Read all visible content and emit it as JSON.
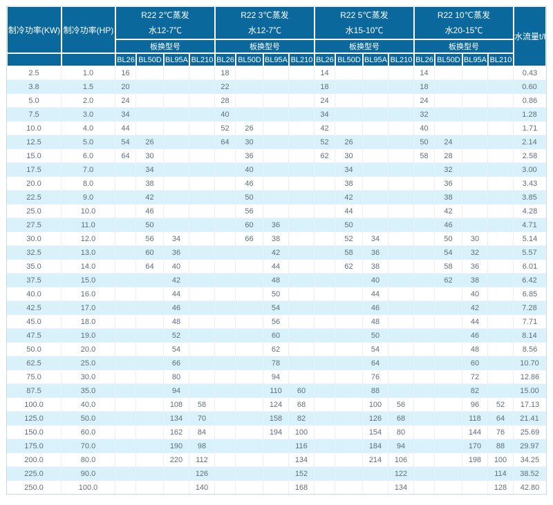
{
  "colors": {
    "header_bg": "#0a689d",
    "row_alt_bg": "#d9f1fb",
    "body_text": "#5f6e79",
    "header_text": "#ffffff",
    "outer_border": "#c2dcec"
  },
  "table": {
    "headers": {
      "kw": "制冷功率(KW)",
      "hp": "制冷功率(HP)",
      "flow": "水流量t/h",
      "plate_model_label": "板换型号",
      "models": [
        "BL26",
        "BL50D",
        "BL95A",
        "BL210"
      ],
      "groups": [
        {
          "line1": "R22 2℃蒸发",
          "line2": "水12-7℃"
        },
        {
          "line1": "R22 3℃蒸发",
          "line2": "水12-7℃"
        },
        {
          "line1": "R22 5℃蒸发",
          "line2": "水15-10℃"
        },
        {
          "line1": "R22 10℃蒸发",
          "line2": "水20-15℃"
        }
      ]
    },
    "rows": [
      {
        "kw": "2.5",
        "hp": "1.0",
        "cells": [
          "16",
          "",
          "",
          "",
          "18",
          "",
          "",
          "",
          "14",
          "",
          "",
          "",
          "14",
          "",
          "",
          ""
        ],
        "flow": "0.43"
      },
      {
        "kw": "3.8",
        "hp": "1.5",
        "cells": [
          "20",
          "",
          "",
          "",
          "22",
          "",
          "",
          "",
          "18",
          "",
          "",
          "",
          "18",
          "",
          "",
          ""
        ],
        "flow": "0.60"
      },
      {
        "kw": "5.0",
        "hp": "2.0",
        "cells": [
          "24",
          "",
          "",
          "",
          "28",
          "",
          "",
          "",
          "24",
          "",
          "",
          "",
          "24",
          "",
          "",
          ""
        ],
        "flow": "0.86"
      },
      {
        "kw": "7.5",
        "hp": "3.0",
        "cells": [
          "34",
          "",
          "",
          "",
          "40",
          "",
          "",
          "",
          "34",
          "",
          "",
          "",
          "32",
          "",
          "",
          ""
        ],
        "flow": "1.28"
      },
      {
        "kw": "10.0",
        "hp": "4.0",
        "cells": [
          "44",
          "",
          "",
          "",
          "52",
          "26",
          "",
          "",
          "42",
          "",
          "",
          "",
          "40",
          "",
          "",
          ""
        ],
        "flow": "1.71"
      },
      {
        "kw": "12.5",
        "hp": "5.0",
        "cells": [
          "54",
          "26",
          "",
          "",
          "64",
          "30",
          "",
          "",
          "52",
          "26",
          "",
          "",
          "50",
          "24",
          "",
          ""
        ],
        "flow": "2.14"
      },
      {
        "kw": "15.0",
        "hp": "6.0",
        "cells": [
          "64",
          "30",
          "",
          "",
          "",
          "36",
          "",
          "",
          "62",
          "30",
          "",
          "",
          "58",
          "28",
          "",
          ""
        ],
        "flow": "2.58"
      },
      {
        "kw": "17.5",
        "hp": "7.0",
        "cells": [
          "",
          "34",
          "",
          "",
          "",
          "40",
          "",
          "",
          "",
          "34",
          "",
          "",
          "",
          "32",
          "",
          ""
        ],
        "flow": "3.00"
      },
      {
        "kw": "20.0",
        "hp": "8.0",
        "cells": [
          "",
          "38",
          "",
          "",
          "",
          "46",
          "",
          "",
          "",
          "38",
          "",
          "",
          "",
          "36",
          "",
          ""
        ],
        "flow": "3.43"
      },
      {
        "kw": "22.5",
        "hp": "9.0",
        "cells": [
          "",
          "42",
          "",
          "",
          "",
          "50",
          "",
          "",
          "",
          "42",
          "",
          "",
          "",
          "38",
          "",
          ""
        ],
        "flow": "3.85"
      },
      {
        "kw": "25.0",
        "hp": "10.0",
        "cells": [
          "",
          "46",
          "",
          "",
          "",
          "56",
          "",
          "",
          "",
          "44",
          "",
          "",
          "",
          "42",
          "",
          ""
        ],
        "flow": "4.28"
      },
      {
        "kw": "27.5",
        "hp": "11.0",
        "cells": [
          "",
          "50",
          "",
          "",
          "",
          "60",
          "36",
          "",
          "",
          "50",
          "",
          "",
          "",
          "46",
          "",
          ""
        ],
        "flow": "4.71"
      },
      {
        "kw": "30.0",
        "hp": "12.0",
        "cells": [
          "",
          "56",
          "34",
          "",
          "",
          "66",
          "38",
          "",
          "",
          "52",
          "34",
          "",
          "",
          "50",
          "30",
          ""
        ],
        "flow": "5.14"
      },
      {
        "kw": "32.5",
        "hp": "13.0",
        "cells": [
          "",
          "60",
          "36",
          "",
          "",
          "",
          "42",
          "",
          "",
          "58",
          "36",
          "",
          "",
          "54",
          "32",
          ""
        ],
        "flow": "5.57"
      },
      {
        "kw": "35.0",
        "hp": "14.0",
        "cells": [
          "",
          "64",
          "40",
          "",
          "",
          "",
          "44",
          "",
          "",
          "62",
          "38",
          "",
          "",
          "58",
          "36",
          ""
        ],
        "flow": "6.01"
      },
      {
        "kw": "37.5",
        "hp": "15.0",
        "cells": [
          "",
          "",
          "42",
          "",
          "",
          "",
          "48",
          "",
          "",
          "",
          "40",
          "",
          "",
          "62",
          "38",
          ""
        ],
        "flow": "6.42"
      },
      {
        "kw": "40.0",
        "hp": "16.0",
        "cells": [
          "",
          "",
          "44",
          "",
          "",
          "",
          "50",
          "",
          "",
          "",
          "44",
          "",
          "",
          "",
          "40",
          ""
        ],
        "flow": "6.85"
      },
      {
        "kw": "42.5",
        "hp": "17.0",
        "cells": [
          "",
          "",
          "46",
          "",
          "",
          "",
          "54",
          "",
          "",
          "",
          "46",
          "",
          "",
          "",
          "42",
          ""
        ],
        "flow": "7.28"
      },
      {
        "kw": "45.0",
        "hp": "18.0",
        "cells": [
          "",
          "",
          "48",
          "",
          "",
          "",
          "56",
          "",
          "",
          "",
          "48",
          "",
          "",
          "",
          "44",
          ""
        ],
        "flow": "7.71"
      },
      {
        "kw": "47.5",
        "hp": "19.0",
        "cells": [
          "",
          "",
          "52",
          "",
          "",
          "",
          "60",
          "",
          "",
          "",
          "50",
          "",
          "",
          "",
          "46",
          ""
        ],
        "flow": "8.14"
      },
      {
        "kw": "50.0",
        "hp": "20.0",
        "cells": [
          "",
          "",
          "54",
          "",
          "",
          "",
          "62",
          "",
          "",
          "",
          "54",
          "",
          "",
          "",
          "48",
          ""
        ],
        "flow": "8.56"
      },
      {
        "kw": "62.5",
        "hp": "25.0",
        "cells": [
          "",
          "",
          "66",
          "",
          "",
          "",
          "78",
          "",
          "",
          "",
          "64",
          "",
          "",
          "",
          "60",
          ""
        ],
        "flow": "10.70"
      },
      {
        "kw": "75.0",
        "hp": "30.0",
        "cells": [
          "",
          "",
          "80",
          "",
          "",
          "",
          "94",
          "",
          "",
          "",
          "76",
          "",
          "",
          "",
          "72",
          ""
        ],
        "flow": "12.86"
      },
      {
        "kw": "87.5",
        "hp": "35.0",
        "cells": [
          "",
          "",
          "94",
          "",
          "",
          "",
          "110",
          "60",
          "",
          "",
          "88",
          "",
          "",
          "",
          "82",
          ""
        ],
        "flow": "15.00"
      },
      {
        "kw": "100.0",
        "hp": "40.0",
        "cells": [
          "",
          "",
          "108",
          "58",
          "",
          "",
          "124",
          "68",
          "",
          "",
          "100",
          "56",
          "",
          "",
          "96",
          "52"
        ],
        "flow": "17.13"
      },
      {
        "kw": "125.0",
        "hp": "50.0",
        "cells": [
          "",
          "",
          "134",
          "70",
          "",
          "",
          "158",
          "82",
          "",
          "",
          "126",
          "68",
          "",
          "",
          "118",
          "64"
        ],
        "flow": "21.41"
      },
      {
        "kw": "150.0",
        "hp": "60.0",
        "cells": [
          "",
          "",
          "162",
          "84",
          "",
          "",
          "194",
          "100",
          "",
          "",
          "154",
          "80",
          "",
          "",
          "144",
          "76"
        ],
        "flow": "25.69"
      },
      {
        "kw": "175.0",
        "hp": "70.0",
        "cells": [
          "",
          "",
          "190",
          "98",
          "",
          "",
          "",
          "116",
          "",
          "",
          "184",
          "94",
          "",
          "",
          "170",
          "88"
        ],
        "flow": "29.97"
      },
      {
        "kw": "200.0",
        "hp": "80.0",
        "cells": [
          "",
          "",
          "220",
          "112",
          "",
          "",
          "",
          "134",
          "",
          "",
          "214",
          "106",
          "",
          "",
          "198",
          "100"
        ],
        "flow": "34.25"
      },
      {
        "kw": "225.0",
        "hp": "90.0",
        "cells": [
          "",
          "",
          "",
          "126",
          "",
          "",
          "",
          "152",
          "",
          "",
          "",
          "122",
          "",
          "",
          "",
          "114"
        ],
        "flow": "38.52"
      },
      {
        "kw": "250.0",
        "hp": "100.0",
        "cells": [
          "",
          "",
          "",
          "140",
          "",
          "",
          "",
          "168",
          "",
          "",
          "",
          "134",
          "",
          "",
          "",
          "128"
        ],
        "flow": "42.80"
      }
    ]
  }
}
